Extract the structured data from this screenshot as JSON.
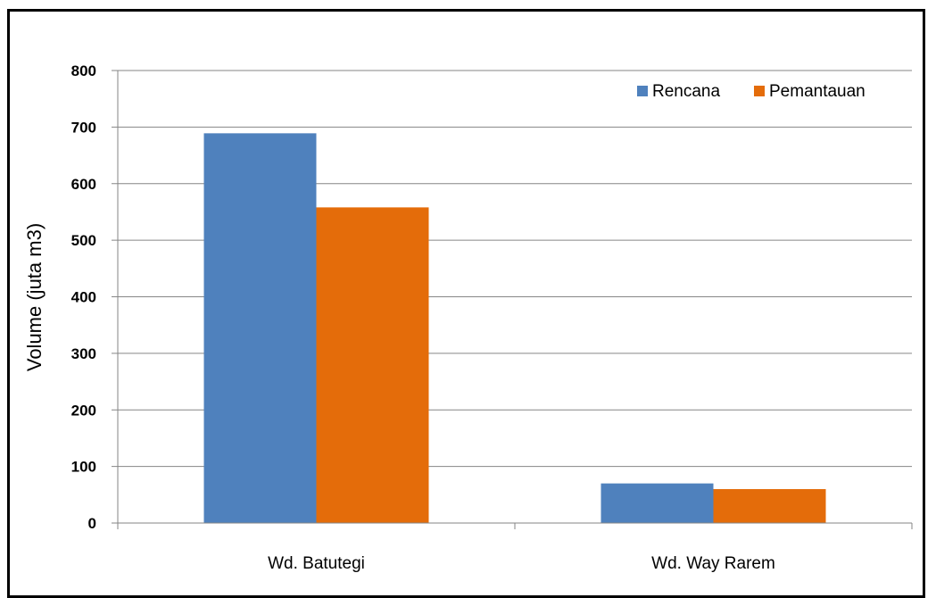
{
  "chart_data": {
    "type": "bar",
    "title": "",
    "xlabel": "",
    "ylabel": "Volume (juta m3)",
    "ylim": [
      0,
      800
    ],
    "yticks": [
      "0",
      "100",
      "200",
      "300",
      "400",
      "500",
      "600",
      "700",
      "800"
    ],
    "categories": [
      "Wd. Batutegi",
      "Wd. Way Rarem"
    ],
    "series": [
      {
        "name": "Rencana",
        "color": "#4F81BD",
        "values": [
          689,
          70
        ]
      },
      {
        "name": "Pemantauan",
        "color": "#E46C0A",
        "values": [
          558,
          60
        ]
      }
    ],
    "grid": true,
    "legend_position": "top-right"
  }
}
